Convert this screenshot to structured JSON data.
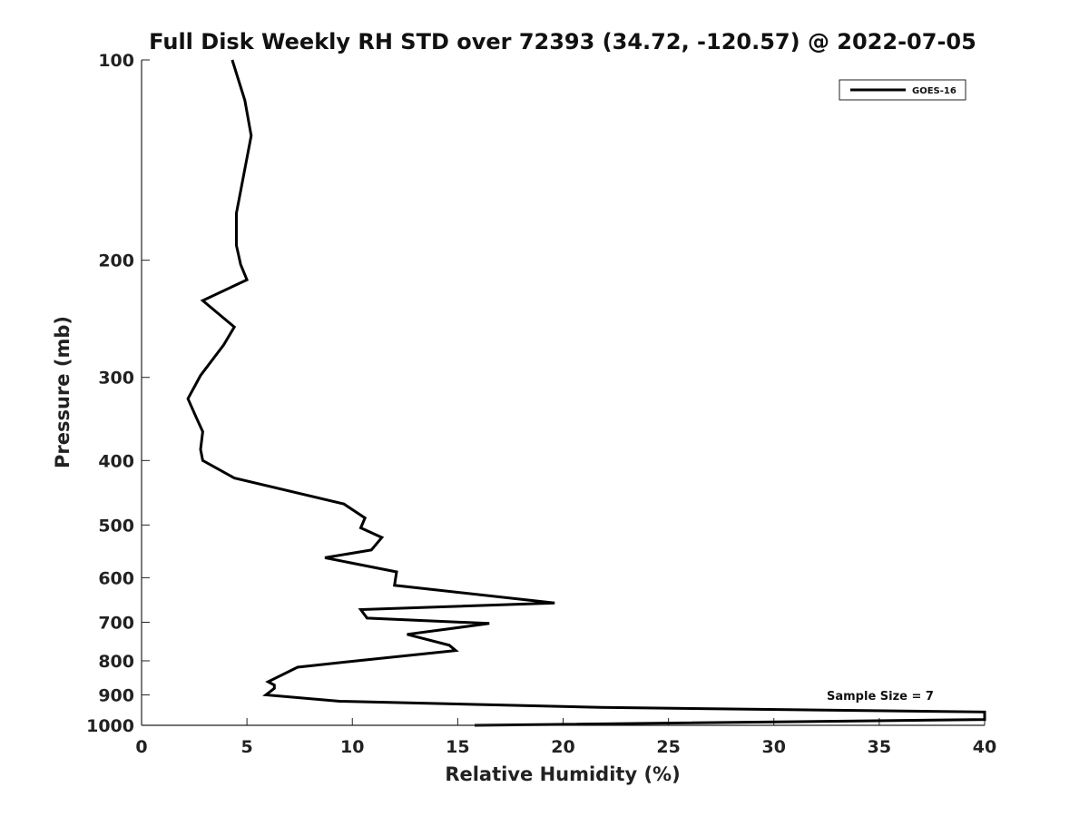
{
  "chart_data": {
    "type": "line",
    "title": "Full Disk Weekly RH STD over 72393 (34.72, -120.57) @ 2022-07-05",
    "xlabel": "Relative Humidity (%)",
    "ylabel": "Pressure (mb)",
    "xlim": [
      0,
      40
    ],
    "ylim": [
      100,
      1000
    ],
    "y_scale": "log",
    "y_reversed": true,
    "x_ticks": [
      "0",
      "5",
      "10",
      "15",
      "20",
      "25",
      "30",
      "35",
      "40"
    ],
    "y_ticks": [
      "100",
      "200",
      "300",
      "400",
      "500",
      "600",
      "700",
      "800",
      "900",
      "1000"
    ],
    "grid": false,
    "legend_position": "top-right",
    "series": [
      {
        "name": "GOES-16",
        "color": "#000000",
        "x": [
          4.3,
          4.9,
          5.2,
          4.5,
          4.5,
          4.7,
          5.0,
          2.9,
          4.4,
          3.9,
          2.8,
          2.2,
          2.6,
          2.9,
          2.8,
          2.9,
          4.4,
          9.6,
          10.6,
          10.4,
          11.4,
          10.9,
          8.7,
          12.1,
          12.0,
          19.6,
          10.4,
          10.7,
          16.5,
          12.6,
          14.6,
          14.9,
          10.2,
          7.4,
          6.0,
          6.3,
          6.3,
          5.9,
          9.4,
          21.8,
          40.0,
          40.0,
          15.8
        ],
        "y": [
          100,
          115,
          130,
          170,
          190,
          203,
          214,
          230,
          252,
          268,
          298,
          323,
          345,
          362,
          385,
          400,
          425,
          465,
          488,
          505,
          522,
          545,
          560,
          588,
          616,
          655,
          670,
          690,
          703,
          730,
          758,
          772,
          800,
          818,
          860,
          870,
          880,
          900,
          920,
          940,
          955,
          980,
          1000
        ]
      }
    ],
    "annotations": [
      "Sample Size = 7"
    ]
  }
}
